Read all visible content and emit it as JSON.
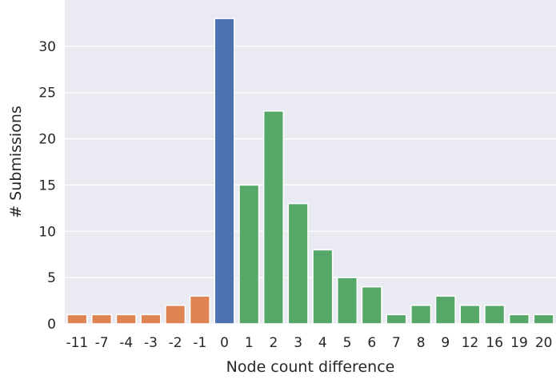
{
  "chart_data": {
    "type": "bar",
    "title": "",
    "xlabel": "Node count difference",
    "ylabel": "# Submissions",
    "ylim": [
      0,
      35
    ],
    "yticks": [
      0,
      5,
      10,
      15,
      20,
      25,
      30
    ],
    "grid": true,
    "legend": "none",
    "categories": [
      "-11",
      "-7",
      "-4",
      "-3",
      "-2",
      "-1",
      "0",
      "1",
      "2",
      "3",
      "4",
      "5",
      "6",
      "7",
      "8",
      "9",
      "12",
      "16",
      "19",
      "20"
    ],
    "values": [
      1,
      1,
      1,
      1,
      2,
      3,
      33,
      15,
      23,
      13,
      8,
      5,
      4,
      1,
      2,
      3,
      2,
      2,
      1,
      1
    ],
    "colors": {
      "negative": "#dd8452",
      "zero": "#4c72b0",
      "positive": "#55a868",
      "background": "#eaeaf2",
      "grid": "#ffffff"
    }
  }
}
